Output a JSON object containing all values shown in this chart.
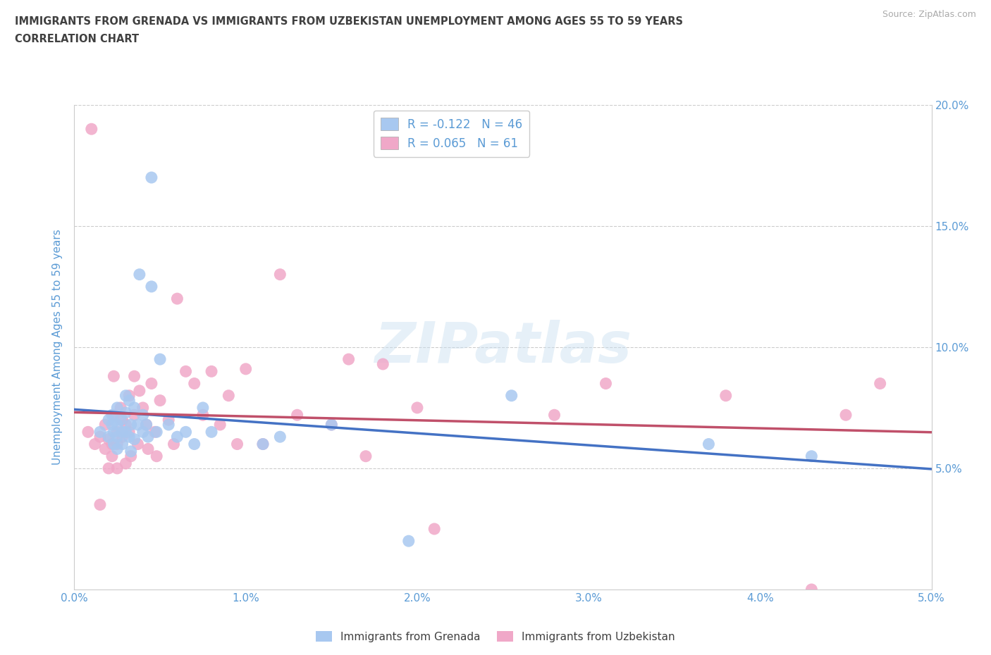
{
  "title_line1": "IMMIGRANTS FROM GRENADA VS IMMIGRANTS FROM UZBEKISTAN UNEMPLOYMENT AMONG AGES 55 TO 59 YEARS",
  "title_line2": "CORRELATION CHART",
  "source_text": "Source: ZipAtlas.com",
  "ylabel": "Unemployment Among Ages 55 to 59 years",
  "xlim": [
    0.0,
    0.05
  ],
  "ylim": [
    0.0,
    0.2
  ],
  "xticks": [
    0.0,
    0.01,
    0.02,
    0.03,
    0.04,
    0.05
  ],
  "yticks": [
    0.0,
    0.05,
    0.1,
    0.15,
    0.2
  ],
  "xtick_labels": [
    "0.0%",
    "1.0%",
    "2.0%",
    "3.0%",
    "4.0%",
    "5.0%"
  ],
  "ytick_labels_right": [
    "",
    "5.0%",
    "10.0%",
    "15.0%",
    "20.0%"
  ],
  "grenada_color": "#a8c8f0",
  "uzbekistan_color": "#f0a8c8",
  "grenada_line_color": "#4472c4",
  "uzbekistan_line_color": "#c0506a",
  "grenada_R": -0.122,
  "grenada_N": 46,
  "uzbekistan_R": 0.065,
  "uzbekistan_N": 61,
  "watermark": "ZIPatlas",
  "background_color": "#ffffff",
  "grid_color": "#cccccc",
  "title_color": "#404040",
  "axis_color": "#5b9bd5",
  "legend_label_grenada": "Immigrants from Grenada",
  "legend_label_uzbekistan": "Immigrants from Uzbekistan",
  "grenada_scatter_x": [
    0.0015,
    0.002,
    0.002,
    0.0022,
    0.0022,
    0.0023,
    0.0023,
    0.0025,
    0.0025,
    0.0025,
    0.0025,
    0.0027,
    0.0028,
    0.0028,
    0.003,
    0.003,
    0.003,
    0.0032,
    0.0032,
    0.0033,
    0.0033,
    0.0035,
    0.0035,
    0.0037,
    0.0038,
    0.004,
    0.004,
    0.0042,
    0.0043,
    0.0045,
    0.0045,
    0.0048,
    0.005,
    0.0055,
    0.006,
    0.0065,
    0.007,
    0.0075,
    0.008,
    0.011,
    0.012,
    0.015,
    0.0195,
    0.0255,
    0.037,
    0.043
  ],
  "grenada_scatter_y": [
    0.065,
    0.07,
    0.063,
    0.068,
    0.072,
    0.065,
    0.06,
    0.075,
    0.068,
    0.063,
    0.058,
    0.07,
    0.065,
    0.06,
    0.08,
    0.073,
    0.065,
    0.078,
    0.063,
    0.068,
    0.057,
    0.075,
    0.062,
    0.068,
    0.13,
    0.072,
    0.065,
    0.068,
    0.063,
    0.17,
    0.125,
    0.065,
    0.095,
    0.068,
    0.063,
    0.065,
    0.06,
    0.075,
    0.065,
    0.06,
    0.063,
    0.068,
    0.02,
    0.08,
    0.06,
    0.055
  ],
  "uzbekistan_scatter_x": [
    0.0008,
    0.001,
    0.0012,
    0.0015,
    0.0015,
    0.0018,
    0.0018,
    0.002,
    0.002,
    0.0022,
    0.0022,
    0.0023,
    0.0023,
    0.0025,
    0.0025,
    0.0025,
    0.0027,
    0.0028,
    0.0028,
    0.003,
    0.003,
    0.0032,
    0.0032,
    0.0033,
    0.0035,
    0.0035,
    0.0037,
    0.0038,
    0.004,
    0.0042,
    0.0043,
    0.0045,
    0.0047,
    0.0048,
    0.005,
    0.0055,
    0.0058,
    0.006,
    0.0065,
    0.007,
    0.0075,
    0.008,
    0.0085,
    0.009,
    0.0095,
    0.01,
    0.011,
    0.012,
    0.013,
    0.015,
    0.016,
    0.017,
    0.018,
    0.02,
    0.021,
    0.028,
    0.031,
    0.038,
    0.043,
    0.045,
    0.047
  ],
  "uzbekistan_scatter_y": [
    0.065,
    0.19,
    0.06,
    0.063,
    0.035,
    0.068,
    0.058,
    0.062,
    0.05,
    0.06,
    0.055,
    0.088,
    0.072,
    0.065,
    0.06,
    0.05,
    0.075,
    0.07,
    0.063,
    0.068,
    0.052,
    0.08,
    0.065,
    0.055,
    0.088,
    0.072,
    0.06,
    0.082,
    0.075,
    0.068,
    0.058,
    0.085,
    0.065,
    0.055,
    0.078,
    0.07,
    0.06,
    0.12,
    0.09,
    0.085,
    0.072,
    0.09,
    0.068,
    0.08,
    0.06,
    0.091,
    0.06,
    0.13,
    0.072,
    0.068,
    0.095,
    0.055,
    0.093,
    0.075,
    0.025,
    0.072,
    0.085,
    0.08,
    0.0,
    0.072,
    0.085
  ]
}
